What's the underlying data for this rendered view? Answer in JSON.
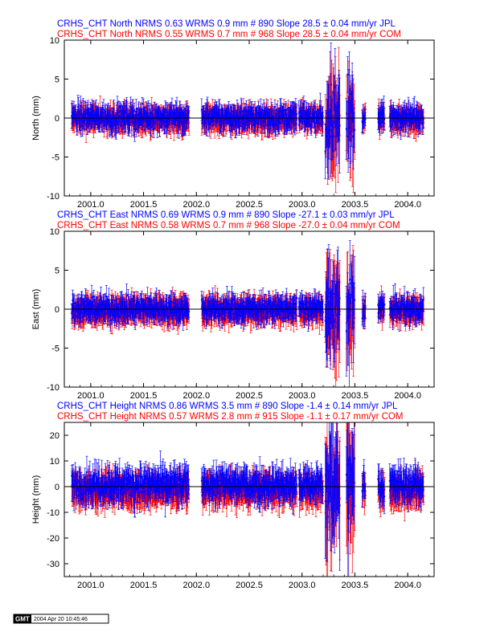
{
  "stamp": {
    "logo": "GMT",
    "timestamp": "2004 Apr 20 10:45:46"
  },
  "colors": {
    "jpl": "#0000ff",
    "com": "#ff0000",
    "zero_line": "#000000"
  },
  "chart_data": [
    {
      "type": "scatter",
      "component": "North",
      "title_jpl": "CRHS_CHT North NRMS 0.63 WRMS  0.9 mm # 890 Slope   28.5 ±  0.04 mm/yr JPL",
      "title_com": "CRHS_CHT North NRMS 0.55 WRMS  0.7 mm # 968 Slope   28.5 ±  0.04 mm/yr COM",
      "ylabel": "North (mm)",
      "xlim": [
        2000.75,
        2004.25
      ],
      "ylim": [
        -10,
        10
      ],
      "xticks": [
        2001.0,
        2001.5,
        2002.0,
        2002.5,
        2003.0,
        2003.5,
        2004.0
      ],
      "xtick_labels": [
        "2001.0",
        "2001.5",
        "2002.0",
        "2002.5",
        "2003.0",
        "2003.5",
        "2004.0"
      ],
      "yticks": [
        -10,
        -5,
        0,
        5,
        10
      ],
      "ytick_labels": [
        "-10",
        "-5",
        "0",
        "5",
        "10"
      ],
      "series": [
        {
          "name": "JPL",
          "n": 890,
          "typical_scatter": 0.9,
          "typical_error": 1.1
        },
        {
          "name": "COM",
          "n": 968,
          "typical_scatter": 0.7,
          "typical_error": 1.3
        }
      ]
    },
    {
      "type": "scatter",
      "component": "East",
      "title_jpl": "CRHS_CHT East NRMS 0.69 WRMS  0.9 mm # 890 Slope  -27.1 ±  0.03 mm/yr JPL",
      "title_com": "CRHS_CHT East NRMS 0.58 WRMS  0.7 mm # 968 Slope  -27.0 ±  0.04 mm/yr COM",
      "ylabel": "East (mm)",
      "xlim": [
        2000.75,
        2004.25
      ],
      "ylim": [
        -10,
        10
      ],
      "xticks": [
        2001.0,
        2001.5,
        2002.0,
        2002.5,
        2003.0,
        2003.5,
        2004.0
      ],
      "xtick_labels": [
        "2001.0",
        "2001.5",
        "2002.0",
        "2002.5",
        "2003.0",
        "2003.5",
        "2004.0"
      ],
      "yticks": [
        -10,
        -5,
        0,
        5,
        10
      ],
      "ytick_labels": [
        "-10",
        "-5",
        "0",
        "5",
        "10"
      ],
      "series": [
        {
          "name": "JPL",
          "n": 890,
          "typical_scatter": 0.9,
          "typical_error": 1.1
        },
        {
          "name": "COM",
          "n": 968,
          "typical_scatter": 0.7,
          "typical_error": 1.4
        }
      ]
    },
    {
      "type": "scatter",
      "component": "Height",
      "title_jpl": "CRHS_CHT Height NRMS 0.86 WRMS  3.5 mm # 890 Slope   -1.4 ±  0.14 mm/yr JPL",
      "title_com": "CRHS_CHT Height NRMS 0.57 WRMS  2.8 mm # 915 Slope   -1.1 ±  0.17 mm/yr COM",
      "ylabel": "Height (mm)",
      "xlim": [
        2000.75,
        2004.25
      ],
      "ylim": [
        -35,
        25
      ],
      "xticks": [
        2001.0,
        2001.5,
        2002.0,
        2002.5,
        2003.0,
        2003.5,
        2004.0
      ],
      "xtick_labels": [
        "2001.0",
        "2001.5",
        "2002.0",
        "2002.5",
        "2003.0",
        "2003.5",
        "2004.0"
      ],
      "yticks": [
        -30,
        -20,
        -10,
        0,
        10,
        20
      ],
      "ytick_labels": [
        "-30",
        "-20",
        "-10",
        "0",
        "10",
        "20"
      ],
      "series": [
        {
          "name": "JPL",
          "n": 890,
          "typical_scatter": 3.5,
          "typical_error": 4.5
        },
        {
          "name": "COM",
          "n": 915,
          "typical_scatter": 2.8,
          "typical_error": 5.0
        }
      ]
    }
  ]
}
